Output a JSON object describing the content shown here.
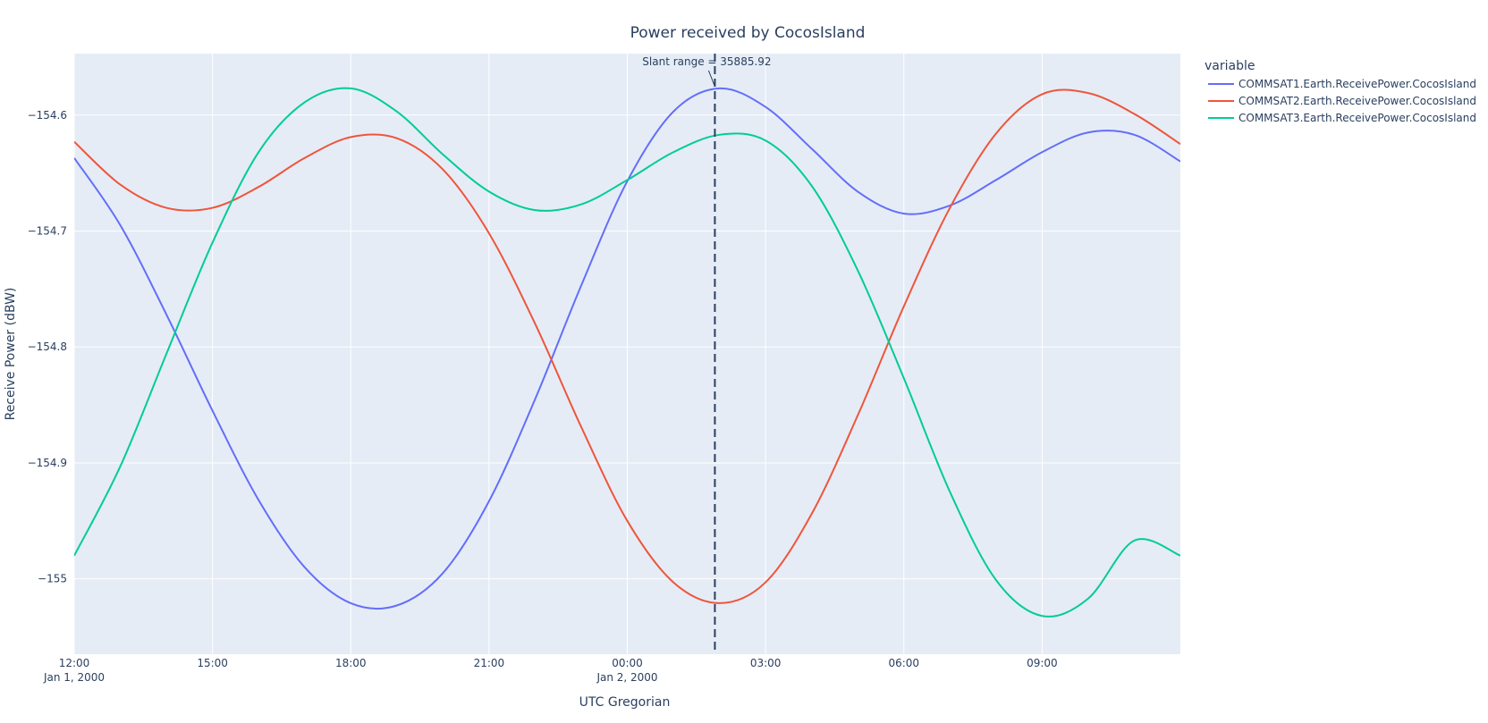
{
  "chart_data": {
    "type": "line",
    "title": "Power received by CocosIsland",
    "xlabel": "UTC Gregorian",
    "ylabel": "Receive Power (dBW)",
    "legend_title": "variable",
    "legend_position": "top-right outside",
    "grid": true,
    "x_range_hours": [
      "2000-01-01 12:00",
      "2000-01-02 12:00"
    ],
    "x_range": [
      "2000-01-01 12:00",
      "2000-01-02 12:00"
    ],
    "ylim": [
      -155.065,
      -154.547
    ],
    "x_ticks": [
      {
        "value": "2000-01-01 12:00",
        "label": "12:00",
        "sublabel": "Jan 1, 2000"
      },
      {
        "value": "2000-01-01 15:00",
        "label": "15:00",
        "sublabel": ""
      },
      {
        "value": "2000-01-01 18:00",
        "label": "18:00",
        "sublabel": ""
      },
      {
        "value": "2000-01-01 21:00",
        "label": "21:00",
        "sublabel": ""
      },
      {
        "value": "2000-01-02 00:00",
        "label": "00:00",
        "sublabel": "Jan 2, 2000"
      },
      {
        "value": "2000-01-02 03:00",
        "label": "03:00",
        "sublabel": ""
      },
      {
        "value": "2000-01-02 06:00",
        "label": "06:00",
        "sublabel": ""
      },
      {
        "value": "2000-01-02 09:00",
        "label": "09:00",
        "sublabel": ""
      }
    ],
    "y_ticks": [
      {
        "value": -154.6,
        "label": "−154.6"
      },
      {
        "value": -154.7,
        "label": "−154.7"
      },
      {
        "value": -154.8,
        "label": "−154.8"
      },
      {
        "value": -154.9,
        "label": "−154.9"
      },
      {
        "value": -155.0,
        "label": "−155"
      }
    ],
    "series": [
      {
        "name": "COMMSAT1.Earth.ReceivePower.CocosIsland",
        "color": "#636efa",
        "x": [
          "2000-01-01 12:00",
          "2000-01-01 13:00",
          "2000-01-01 14:00",
          "2000-01-01 15:00",
          "2000-01-01 16:00",
          "2000-01-01 17:00",
          "2000-01-01 18:00",
          "2000-01-01 19:00",
          "2000-01-01 20:00",
          "2000-01-01 21:00",
          "2000-01-01 22:00",
          "2000-01-01 23:00",
          "2000-01-02 00:00",
          "2000-01-02 01:00",
          "2000-01-02 02:00",
          "2000-01-02 03:00",
          "2000-01-02 04:00",
          "2000-01-02 05:00",
          "2000-01-02 06:00",
          "2000-01-02 07:00",
          "2000-01-02 08:00",
          "2000-01-02 09:00",
          "2000-01-02 10:00",
          "2000-01-02 11:00",
          "2000-01-02 12:00"
        ],
        "y": [
          -154.637,
          -154.695,
          -154.772,
          -154.855,
          -154.932,
          -154.99,
          -155.021,
          -155.023,
          -154.995,
          -154.933,
          -154.845,
          -154.747,
          -154.657,
          -154.597,
          -154.577,
          -154.593,
          -154.629,
          -154.666,
          -154.685,
          -154.678,
          -154.656,
          -154.632,
          -154.615,
          -154.617,
          -154.64
        ]
      },
      {
        "name": "COMMSAT2.Earth.ReceivePower.CocosIsland",
        "color": "#ef553b",
        "x": [
          "2000-01-01 12:00",
          "2000-01-01 13:00",
          "2000-01-01 14:00",
          "2000-01-01 15:00",
          "2000-01-01 16:00",
          "2000-01-01 17:00",
          "2000-01-01 18:00",
          "2000-01-01 19:00",
          "2000-01-01 20:00",
          "2000-01-01 21:00",
          "2000-01-01 22:00",
          "2000-01-01 23:00",
          "2000-01-02 00:00",
          "2000-01-02 01:00",
          "2000-01-02 02:00",
          "2000-01-02 03:00",
          "2000-01-02 04:00",
          "2000-01-02 05:00",
          "2000-01-02 06:00",
          "2000-01-02 07:00",
          "2000-01-02 08:00",
          "2000-01-02 09:00",
          "2000-01-02 10:00",
          "2000-01-02 11:00",
          "2000-01-02 12:00"
        ],
        "y": [
          -154.623,
          -154.66,
          -154.68,
          -154.68,
          -154.662,
          -154.637,
          -154.619,
          -154.62,
          -154.647,
          -154.702,
          -154.78,
          -154.869,
          -154.95,
          -155.003,
          -155.021,
          -155.003,
          -154.944,
          -154.859,
          -154.765,
          -154.68,
          -154.616,
          -154.582,
          -154.581,
          -154.599,
          -154.625
        ]
      },
      {
        "name": "COMMSAT3.Earth.ReceivePower.CocosIsland",
        "color": "#00cc96",
        "x": [
          "2000-01-01 12:00",
          "2000-01-01 13:00",
          "2000-01-01 14:00",
          "2000-01-01 15:00",
          "2000-01-01 16:00",
          "2000-01-01 17:00",
          "2000-01-01 18:00",
          "2000-01-01 19:00",
          "2000-01-01 20:00",
          "2000-01-01 21:00",
          "2000-01-01 22:00",
          "2000-01-01 23:00",
          "2000-01-02 00:00",
          "2000-01-02 01:00",
          "2000-01-02 02:00",
          "2000-01-02 03:00",
          "2000-01-02 04:00",
          "2000-01-02 05:00",
          "2000-01-02 06:00",
          "2000-01-02 07:00",
          "2000-01-02 08:00",
          "2000-01-02 09:00",
          "2000-01-02 10:00",
          "2000-01-02 11:00",
          "2000-01-02 12:00"
        ],
        "y": [
          -154.98,
          -154.903,
          -154.806,
          -154.71,
          -154.632,
          -154.589,
          -154.577,
          -154.597,
          -154.634,
          -154.666,
          -154.682,
          -154.677,
          -154.656,
          -154.632,
          -154.617,
          -154.622,
          -154.661,
          -154.734,
          -154.827,
          -154.925,
          -155.001,
          -155.032,
          -155.017,
          -154.967,
          -154.98
        ]
      }
    ],
    "annotations": [
      {
        "text": "Slant range = 35885.92",
        "x": "2000-01-02 01:54",
        "y": -154.577
      }
    ],
    "vertical_lines": [
      {
        "x": "2000-01-02 01:54",
        "style": "dashed",
        "color": "#2a3f5f"
      }
    ]
  }
}
